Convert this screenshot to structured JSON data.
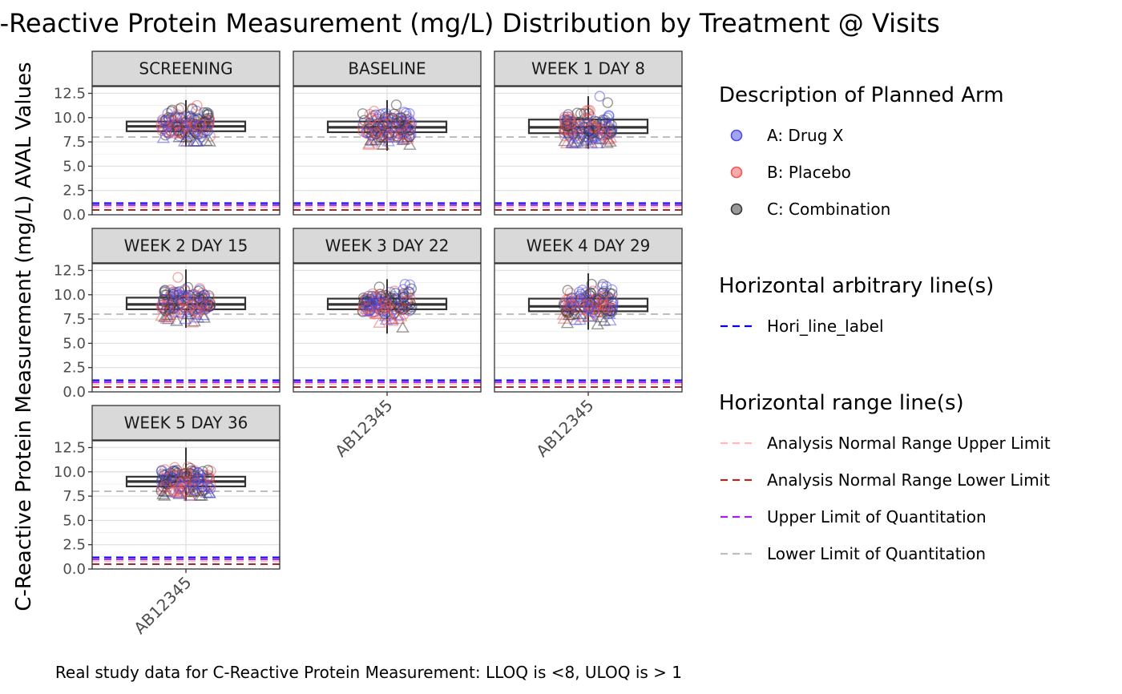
{
  "chart_data": {
    "type": "box",
    "title": "C-Reactive Protein Measurement (mg/L) Distribution by Treatment @ Visits",
    "ylabel": "C-Reactive Protein Measurement (mg/L) AVAL Values",
    "xlabel": "",
    "caption": "Real study data for C-Reactive Protein Measurement: LLOQ is <8, ULOQ is > 1",
    "x_category": "AB12345",
    "ylim": [
      0,
      13.2
    ],
    "y_ticks": [
      "0.0",
      "2.5",
      "5.0",
      "7.5",
      "10.0",
      "12.5"
    ],
    "grid": true,
    "legend_position": "right",
    "facets": [
      {
        "label": "SCREENING",
        "box": {
          "min": 7.0,
          "q1": 8.6,
          "median": 9.1,
          "q3": 9.6,
          "max": 11.8
        }
      },
      {
        "label": "BASELINE",
        "box": {
          "min": 6.6,
          "q1": 8.5,
          "median": 9.0,
          "q3": 9.6,
          "max": 11.8
        }
      },
      {
        "label": "WEEK 1 DAY 8",
        "box": {
          "min": 6.8,
          "q1": 8.4,
          "median": 9.0,
          "q3": 9.8,
          "max": 12.2
        }
      },
      {
        "label": "WEEK 2 DAY 15",
        "box": {
          "min": 6.6,
          "q1": 8.5,
          "median": 9.0,
          "q3": 9.7,
          "max": 12.6
        }
      },
      {
        "label": "WEEK 3 DAY 22",
        "box": {
          "min": 6.0,
          "q1": 8.5,
          "median": 9.0,
          "q3": 9.6,
          "max": 11.6
        }
      },
      {
        "label": "WEEK 4 DAY 29",
        "box": {
          "min": 6.4,
          "q1": 8.3,
          "median": 8.8,
          "q3": 9.6,
          "max": 12.2
        }
      },
      {
        "label": "WEEK 5 DAY 36",
        "box": {
          "min": 7.0,
          "q1": 8.5,
          "median": 9.0,
          "q3": 9.5,
          "max": 12.5
        }
      }
    ],
    "reference_lines": {
      "hori_line": 1.2,
      "lower_limit_of_quantitation": 8.0,
      "upper_limit_of_quantitation": 1.0,
      "analysis_normal_range_upper_limit": 0.8,
      "analysis_normal_range_lower_limit": 0.5
    },
    "legend": {
      "arm": {
        "title": "Description of Planned Arm",
        "items": [
          {
            "label": "A: Drug X",
            "color": "#4a4ae8"
          },
          {
            "label": "B: Placebo",
            "color": "#ee5555"
          },
          {
            "label": "C: Combination",
            "color": "#333333"
          }
        ]
      },
      "hline": {
        "title": "Horizontal arbitrary line(s)",
        "items": [
          {
            "label": "Hori_line_label",
            "color": "#0000ee"
          }
        ]
      },
      "range": {
        "title": "Horizontal range line(s)",
        "items": [
          {
            "label": "Analysis Normal Range Upper Limit",
            "color": "#ffb6c1"
          },
          {
            "label": "Analysis Normal Range Lower Limit",
            "color": "#a52a2a"
          },
          {
            "label": "Upper Limit of Quantitation",
            "color": "#a020f0"
          },
          {
            "label": "Lower Limit of Quantitation",
            "color": "#bebebe"
          }
        ]
      }
    }
  }
}
